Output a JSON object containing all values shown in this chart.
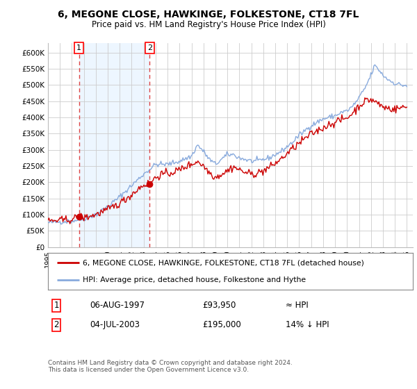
{
  "title": "6, MEGONE CLOSE, HAWKINGE, FOLKESTONE, CT18 7FL",
  "subtitle": "Price paid vs. HM Land Registry's House Price Index (HPI)",
  "legend_line1": "6, MEGONE CLOSE, HAWKINGE, FOLKESTONE, CT18 7FL (detached house)",
  "legend_line2": "HPI: Average price, detached house, Folkestone and Hythe",
  "transaction1_label": "1",
  "transaction1_date": "06-AUG-1997",
  "transaction1_price": "£93,950",
  "transaction1_vs_hpi": "≈ HPI",
  "transaction2_label": "2",
  "transaction2_date": "04-JUL-2003",
  "transaction2_price": "£195,000",
  "transaction2_vs_hpi": "14% ↓ HPI",
  "footer": "Contains HM Land Registry data © Crown copyright and database right 2024.\nThis data is licensed under the Open Government Licence v3.0.",
  "transaction1_x": 1997.6,
  "transaction1_y": 93950,
  "transaction1_vline_x": 1997.6,
  "transaction2_x": 2003.5,
  "transaction2_y": 195000,
  "transaction2_vline_x": 2003.5,
  "hpi_color": "#88aadd",
  "price_color": "#cc0000",
  "vline_color": "#dd4444",
  "shade_color": "#ddeeff",
  "background_color": "#ffffff",
  "grid_color": "#cccccc",
  "ylim": [
    0,
    630000
  ],
  "xlim_left": 1995.0,
  "xlim_right": 2025.5
}
